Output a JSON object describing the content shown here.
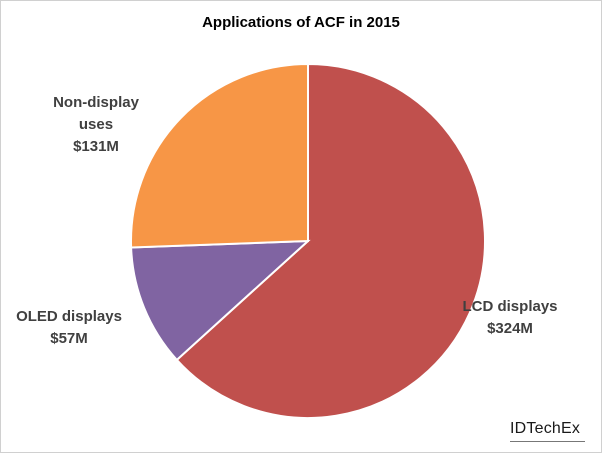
{
  "chart_data": {
    "type": "pie",
    "title": "Applications of ACF in 2015",
    "slices": [
      {
        "label": "LCD displays",
        "value_label": "$324M",
        "value": 324,
        "color": "#c0504d"
      },
      {
        "label": "OLED displays",
        "value_label": "$57M",
        "value": 57,
        "color": "#8064a2"
      },
      {
        "label": "Non-display uses",
        "value_label": "$131M",
        "value": 131,
        "color": "#f79646"
      }
    ],
    "start": "12 o'clock",
    "direction": "clockwise",
    "legend": "none"
  },
  "labels": {
    "lcd": {
      "line1": "LCD displays",
      "line2": "$324M"
    },
    "oled": {
      "line1": "OLED displays",
      "line2": "$57M"
    },
    "nondisplay": {
      "line1": "Non-display",
      "line2": "uses",
      "line3": "$131M"
    }
  },
  "branding": {
    "logo_text": "IDTechEx"
  }
}
